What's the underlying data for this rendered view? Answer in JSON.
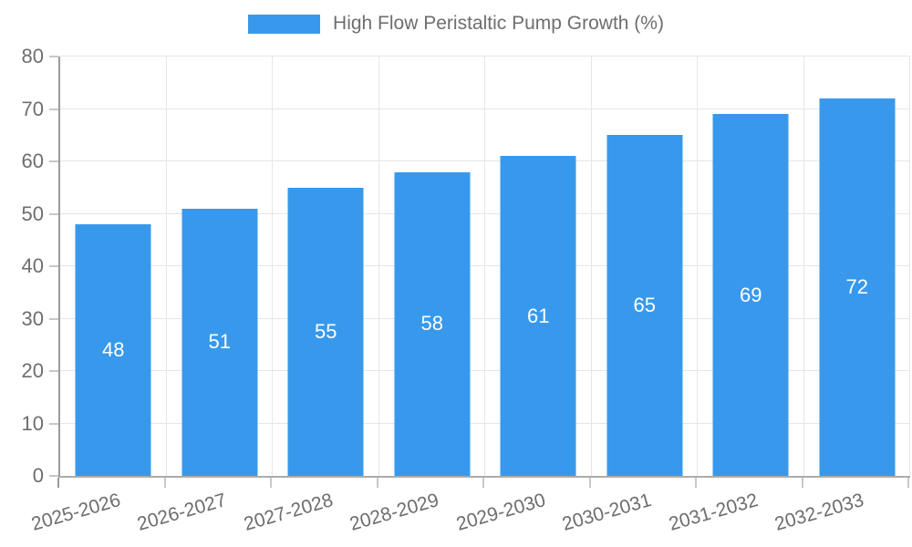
{
  "chart_data": {
    "type": "bar",
    "legend_label": "High Flow Peristaltic Pump Growth (%)",
    "categories": [
      "2025-2026",
      "2026-2027",
      "2027-2028",
      "2028-2029",
      "2029-2030",
      "2030-2031",
      "2031-2032",
      "2032-2033"
    ],
    "values": [
      48,
      51,
      55,
      58,
      61,
      65,
      69,
      72
    ],
    "ylim": [
      0,
      80
    ],
    "ytick_step": 10,
    "xlabel": "",
    "ylabel": "",
    "grid": "on",
    "legend_position": "top-center",
    "colors": {
      "bar": "#3899EC",
      "value_label": "#FFFFFF",
      "axis_text": "#6E6E6E",
      "grid_line": "#E6E6E6",
      "y_axis_line": "#9B9B9B",
      "x_axis_line": "#ACACAC",
      "tick_mark": "#C8C8C8",
      "background": "#FFFFFF"
    }
  }
}
